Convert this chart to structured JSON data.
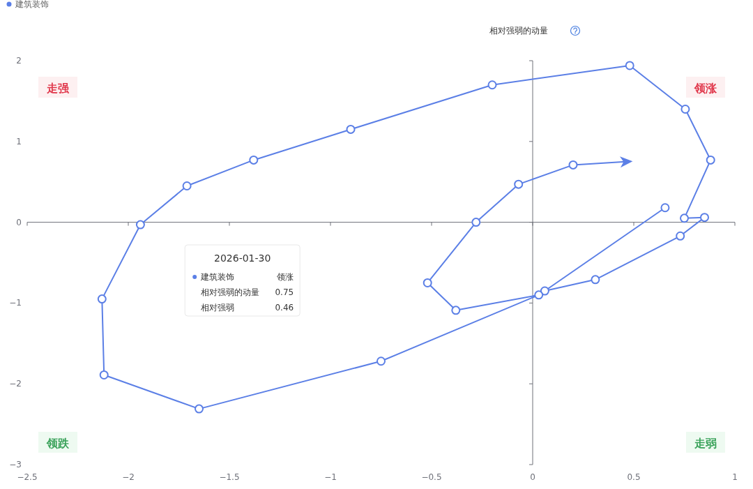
{
  "chart_data": {
    "type": "line",
    "ylabel": "相对强弱的动量",
    "legend": "top left",
    "marker": "circle",
    "line_style": "solid",
    "xlim": [
      -2.5,
      1
    ],
    "xticks": [
      -2.5,
      -2,
      -1.5,
      -1,
      -0.5,
      0,
      0.5,
      1
    ],
    "ylim": [
      -3,
      2
    ],
    "yticks": [
      -3,
      -2,
      -1,
      0,
      1,
      2
    ],
    "series": [
      {
        "name": "建筑装饰",
        "color": "#5b7fe6",
        "x": [
          0.655,
          0.06,
          0.31,
          0.73,
          0.85,
          0.75,
          0.88,
          0.755,
          0.48,
          -0.2,
          -0.9,
          -1.38,
          -1.71,
          -1.94,
          -2.13,
          -2.12,
          -1.65,
          -0.75,
          0.03,
          -0.38,
          -0.52,
          -0.28,
          -0.07,
          0.2,
          0.46
        ],
        "values": [
          0.18,
          -0.85,
          -0.71,
          -0.17,
          0.06,
          0.05,
          0.77,
          1.4,
          1.94,
          1.7,
          1.15,
          0.77,
          0.45,
          -0.03,
          -0.95,
          -1.89,
          -2.31,
          -1.72,
          -0.9,
          -1.09,
          -0.75,
          0.0,
          0.47,
          0.71,
          0.75
        ]
      }
    ],
    "annotations": [
      "走强",
      "领涨",
      "领跌",
      "走弱",
      "2026-01-30",
      "建筑装饰",
      "领涨",
      "相对强弱的动量",
      "0.75",
      "相对强弱",
      "0.46"
    ]
  }
}
